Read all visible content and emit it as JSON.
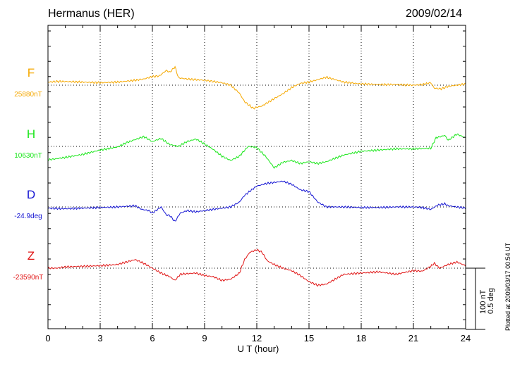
{
  "header": {
    "station": "Hermanus (HER)",
    "date": "2009/02/14"
  },
  "footer": {
    "plotted_at": "Plotted at 2009/03/17 00:54 UT",
    "scale_nt": "100 nT",
    "scale_deg": "0.5 deg"
  },
  "chart_data": {
    "type": "line",
    "title": "Hermanus (HER)",
    "xlabel": "U T (hour)",
    "ylabel": "",
    "xlim": [
      0,
      24
    ],
    "xticks": [
      "0",
      "3",
      "6",
      "9",
      "12",
      "15",
      "18",
      "21",
      "24"
    ],
    "grid": true,
    "scale_bar": {
      "nT": 100,
      "deg": 0.5
    },
    "series": [
      {
        "name": "F",
        "baseline_label": "25880nT",
        "color": "#f5a800",
        "x": [
          0,
          0.5,
          1,
          2,
          3,
          4,
          5,
          5.5,
          6,
          6.4,
          6.8,
          7,
          7.3,
          7.5,
          8,
          9,
          10,
          10.5,
          11,
          11.3,
          11.8,
          12,
          12.3,
          13,
          13.5,
          14,
          14.5,
          15,
          16,
          17,
          18,
          19,
          20,
          21,
          21.5,
          22,
          22.2,
          22.6,
          23,
          23.5,
          24
        ],
        "values": [
          -5,
          -6,
          -6,
          -5,
          -4,
          -5,
          -8,
          -10,
          -14,
          -15,
          -24,
          -21,
          -30,
          -12,
          -10,
          -8,
          -4,
          0,
          13,
          27,
          38,
          36,
          34,
          22,
          14,
          4,
          -3,
          -5,
          -13,
          -5,
          -2,
          -1,
          -1,
          0,
          -1,
          -4,
          5,
          6,
          2,
          0,
          -2
        ]
      },
      {
        "name": "H",
        "baseline_label": "10630nT",
        "color": "#19e619",
        "x": [
          0,
          0.5,
          1,
          2,
          3,
          4,
          4.5,
          5,
          5.5,
          6,
          6.5,
          7,
          7.5,
          8,
          8.5,
          9,
          9.5,
          10,
          10.5,
          11,
          11.5,
          12,
          12.5,
          13,
          13.5,
          14,
          14.5,
          15,
          15.5,
          16,
          17,
          18,
          19,
          20,
          21,
          22,
          22.3,
          22.8,
          23,
          23.5,
          24
        ],
        "values": [
          22,
          20,
          18,
          13,
          6,
          1,
          -6,
          -11,
          -16,
          -8,
          -13,
          -3,
          0,
          -8,
          -12,
          -4,
          5,
          16,
          23,
          16,
          0,
          2,
          16,
          35,
          26,
          23,
          28,
          25,
          28,
          25,
          14,
          8,
          6,
          4,
          4,
          3,
          -14,
          -18,
          -10,
          -20,
          -14
        ]
      },
      {
        "name": "D",
        "baseline_label": "-24.9deg",
        "color": "#1414d2",
        "x": [
          0,
          1,
          2,
          3,
          4,
          5,
          5.4,
          5.8,
          6,
          6.5,
          6.8,
          7,
          7.3,
          7.6,
          8,
          8.5,
          9,
          9.5,
          10,
          10.5,
          11,
          11.3,
          11.8,
          12,
          12.5,
          13,
          13.5,
          14,
          14.5,
          15,
          15.5,
          16,
          17,
          18,
          19,
          20,
          21,
          21.5,
          22,
          22.4,
          22.8,
          23,
          23.5,
          24
        ],
        "values": [
          2,
          3,
          2,
          1,
          0,
          -2,
          4,
          6,
          10,
          0,
          13,
          14,
          24,
          10,
          6,
          8,
          6,
          4,
          2,
          0,
          -8,
          -19,
          -30,
          -34,
          -38,
          -40,
          -42,
          -37,
          -28,
          -25,
          -8,
          0,
          0,
          1,
          1,
          0,
          0,
          1,
          4,
          -3,
          -5,
          -2,
          0,
          2
        ]
      },
      {
        "name": "Z",
        "baseline_label": "-23590nT",
        "color": "#e01414",
        "x": [
          0,
          0.5,
          1,
          2,
          3,
          4,
          4.5,
          5,
          5.5,
          6,
          6.5,
          7,
          7.3,
          7.6,
          8,
          8.5,
          9,
          9.5,
          10,
          10.5,
          11,
          11.3,
          11.6,
          12,
          12.3,
          12.6,
          13,
          13.5,
          14,
          14.5,
          15,
          15.5,
          16,
          17,
          18,
          19,
          20,
          21,
          21.5,
          22,
          22.2,
          22.5,
          23,
          23.5,
          24
        ],
        "values": [
          0,
          0,
          -2,
          -3,
          -4,
          -6,
          -10,
          -14,
          -8,
          0,
          8,
          14,
          20,
          10,
          9,
          8,
          12,
          14,
          20,
          18,
          8,
          -14,
          -26,
          -30,
          -26,
          -12,
          -6,
          0,
          4,
          12,
          22,
          28,
          26,
          10,
          8,
          6,
          10,
          4,
          5,
          -3,
          -8,
          0,
          -6,
          -10,
          -4
        ]
      }
    ]
  }
}
